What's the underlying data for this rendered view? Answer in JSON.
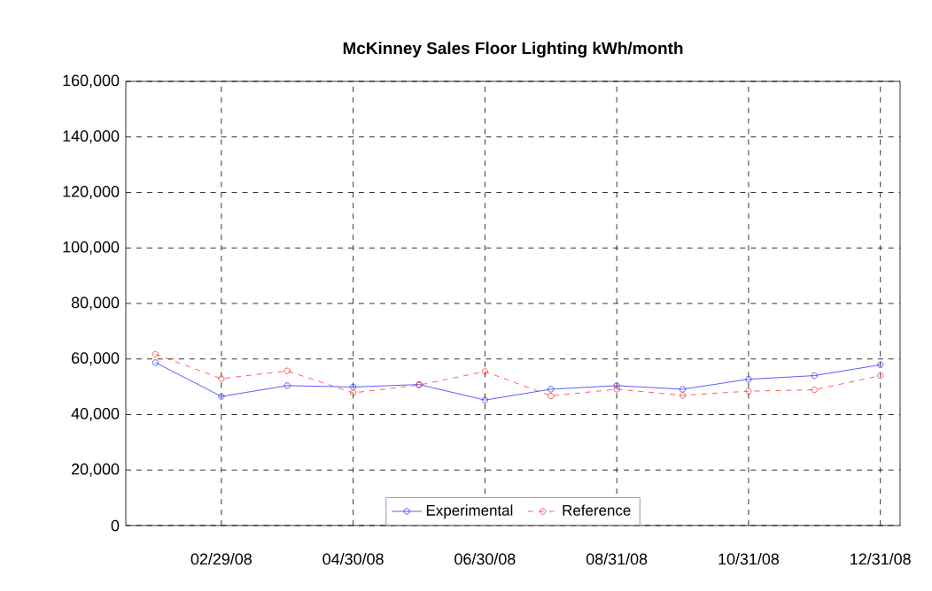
{
  "chart_data": {
    "type": "line",
    "title": "McKinney Sales Floor Lighting kWh/month",
    "categories": [
      null,
      "02/29/08",
      null,
      "04/30/08",
      null,
      "06/30/08",
      null,
      "08/31/08",
      null,
      "10/31/08",
      null,
      "12/31/08"
    ],
    "series": [
      {
        "name": "Experimental",
        "color": "#3333ff",
        "line_style": "solid",
        "values": [
          58700,
          46500,
          50400,
          49900,
          50800,
          45200,
          49100,
          50400,
          49100,
          52700,
          54000,
          57900
        ]
      },
      {
        "name": "Reference",
        "color": "#ff3333",
        "line_style": "dashed",
        "values": [
          61700,
          52900,
          55700,
          47800,
          50600,
          55500,
          46700,
          49100,
          46900,
          48400,
          48900,
          54000
        ]
      }
    ],
    "ylim": [
      0,
      160000
    ],
    "yticks": [
      {
        "value": 0,
        "label": "0"
      },
      {
        "value": 20000,
        "label": "20,000"
      },
      {
        "value": 40000,
        "label": "40,000"
      },
      {
        "value": 60000,
        "label": "60,000"
      },
      {
        "value": 80000,
        "label": "80,000"
      },
      {
        "value": 100000,
        "label": "100,000"
      },
      {
        "value": 120000,
        "label": "120,000"
      },
      {
        "value": 140000,
        "label": "140,000"
      },
      {
        "value": 160000,
        "label": "160,000"
      }
    ],
    "grid": true,
    "legend": "bottom",
    "marker": "circle"
  }
}
